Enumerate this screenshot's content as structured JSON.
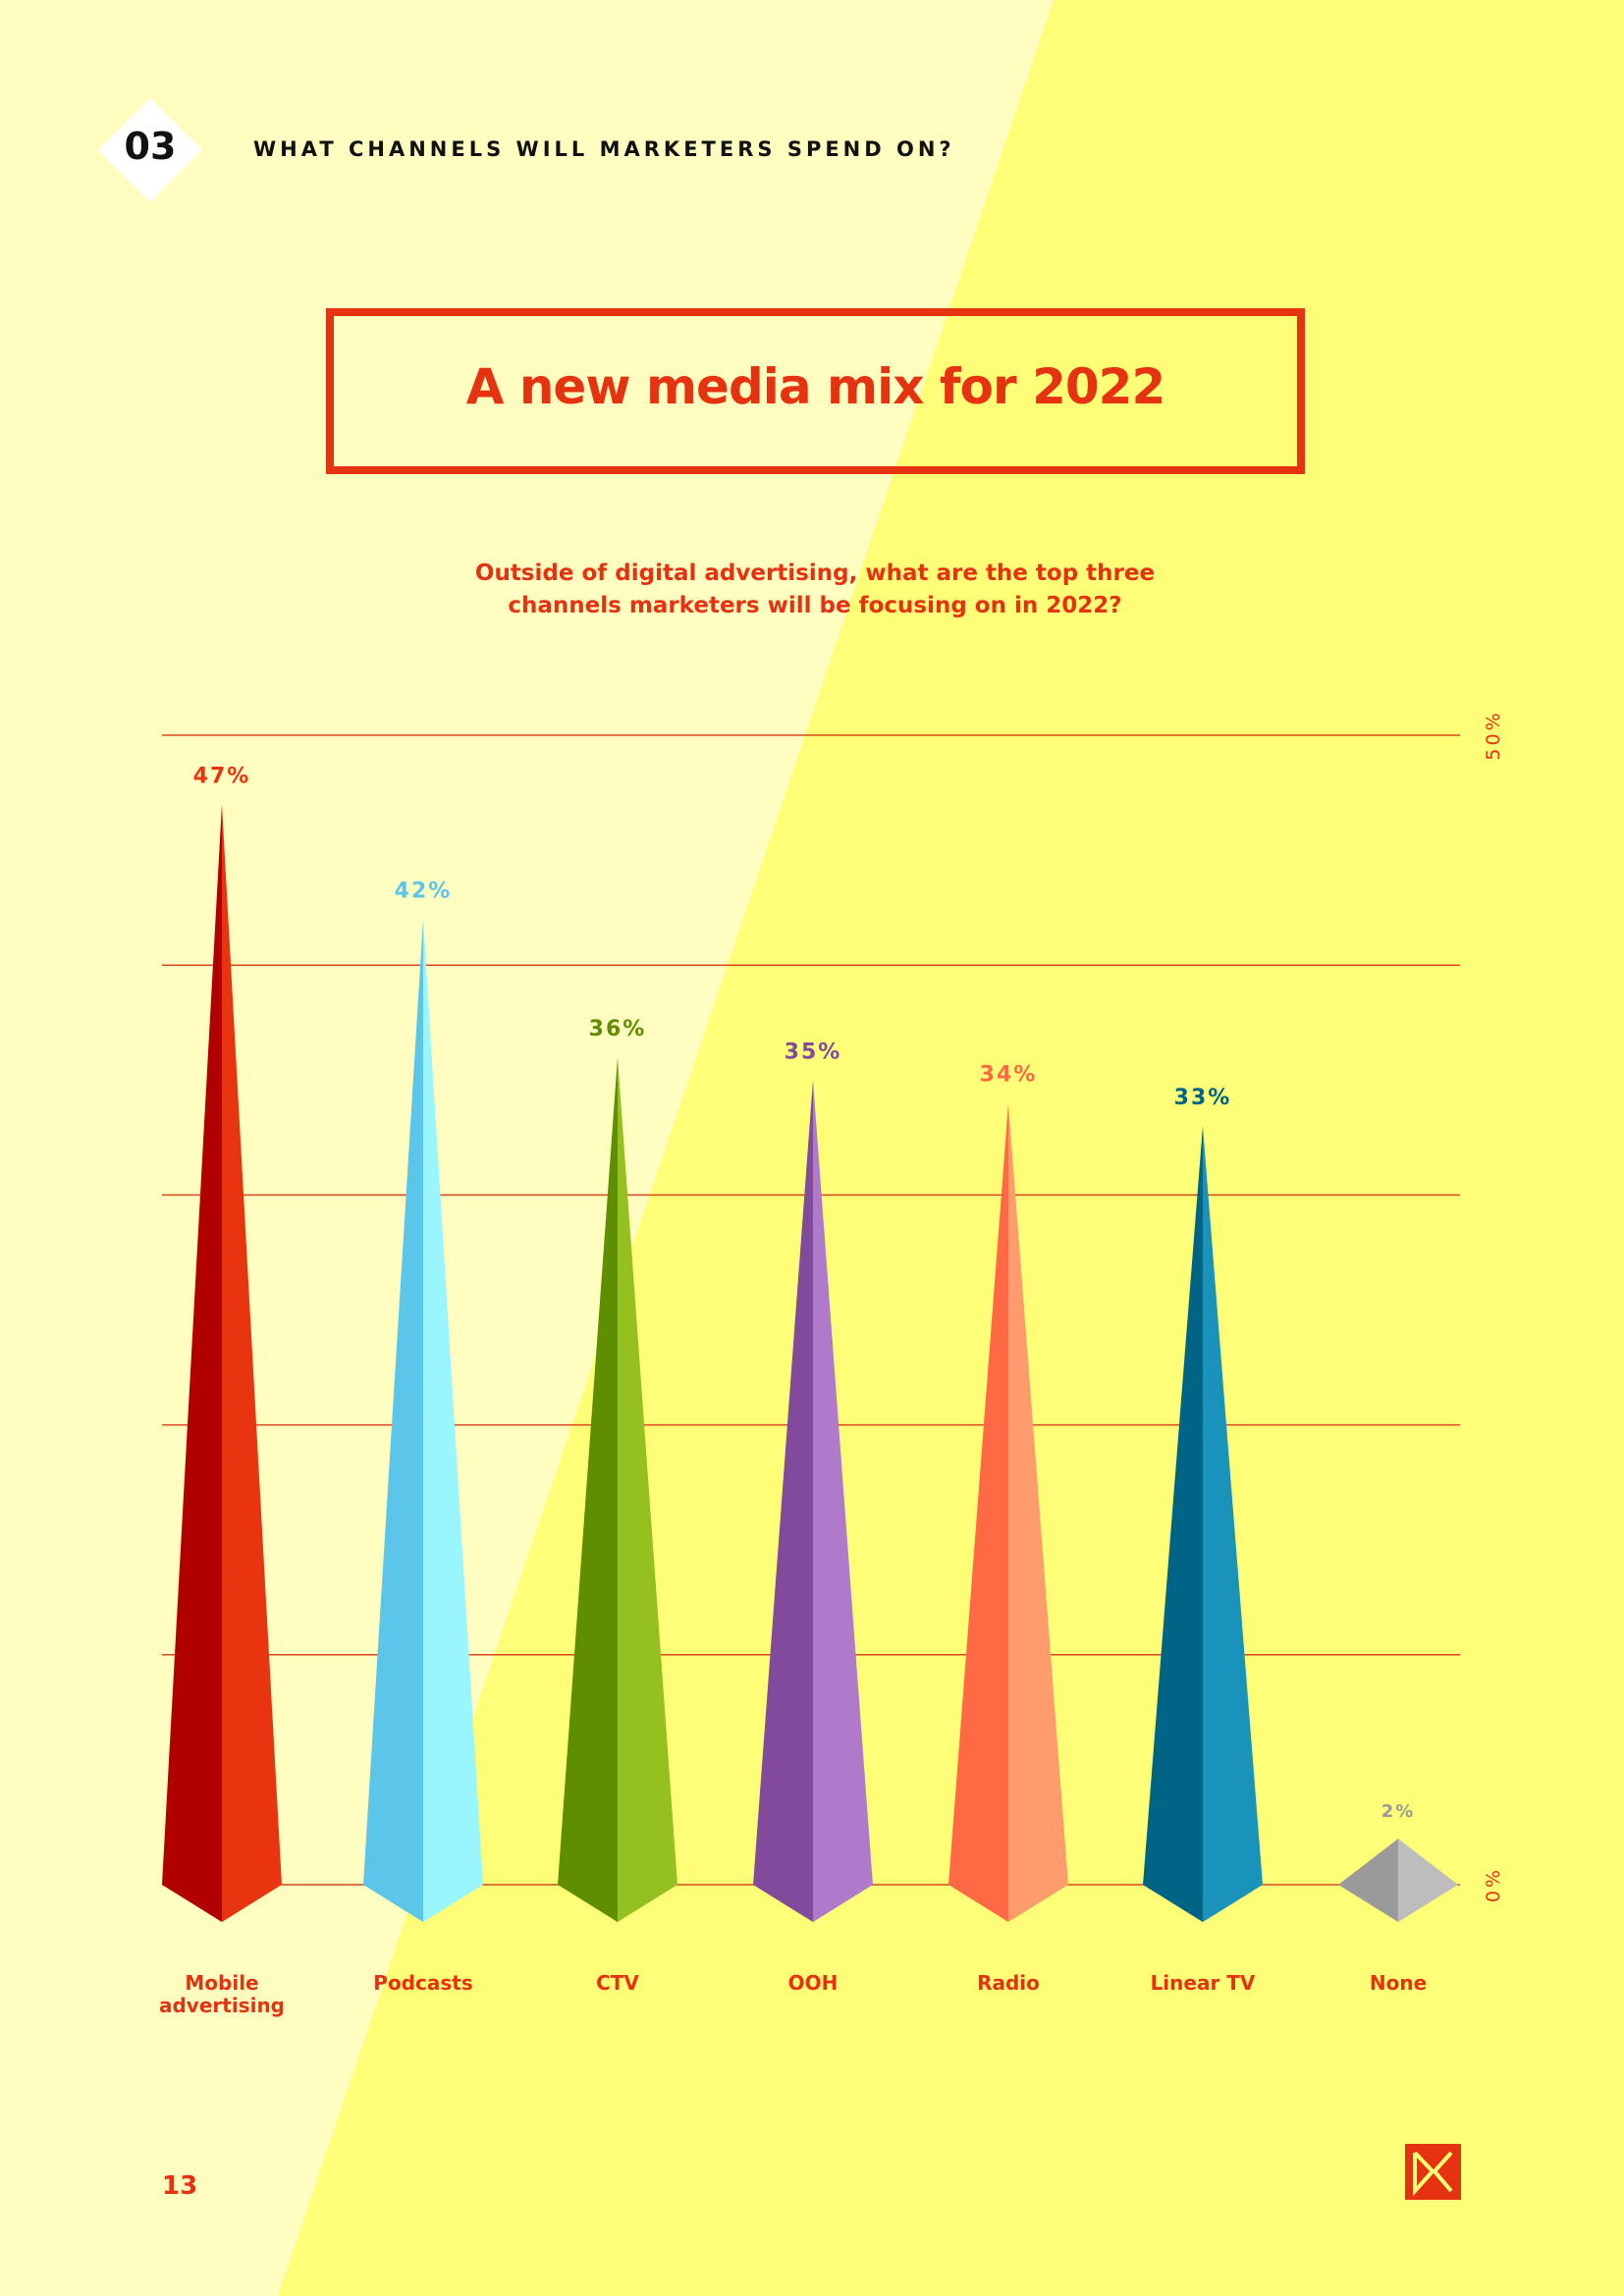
{
  "header": {
    "section_number": "03",
    "section_title": "WHAT CHANNELS WILL MARKETERS SPEND ON?"
  },
  "title": "A new media mix for 2022",
  "subtitle_lines": [
    "Outside of digital advertising, what are the top three",
    "channels marketers will be focusing on in 2022?"
  ],
  "footer": {
    "page_number": "13",
    "logo_text": "DK"
  },
  "colors": {
    "accent": "#E53312",
    "bg_light": "#FFFDC0",
    "bg_yellow": "#FFFF77"
  },
  "chart_data": {
    "type": "bar",
    "style": "pyramid spikes",
    "categories": [
      "Mobile advertising",
      "Podcasts",
      "CTV",
      "OOH",
      "Radio",
      "Linear TV",
      "None"
    ],
    "category_lines": [
      [
        "Mobile",
        "advertising"
      ],
      [
        "Podcasts"
      ],
      [
        "CTV"
      ],
      [
        "OOH"
      ],
      [
        "Radio"
      ],
      [
        "Linear TV"
      ],
      [
        "None"
      ]
    ],
    "values": [
      47,
      42,
      36,
      35,
      34,
      33,
      2
    ],
    "data_labels": [
      "47%",
      "42%",
      "36%",
      "35%",
      "34%",
      "33%",
      "2%"
    ],
    "colors": [
      {
        "dark": "#B00000",
        "light": "#E8340F",
        "label": "#E8340F"
      },
      {
        "dark": "#5BC5EA",
        "light": "#99F6FF",
        "label": "#5BC5EA"
      },
      {
        "dark": "#5F8E00",
        "light": "#94C11F",
        "label": "#5F8E00"
      },
      {
        "dark": "#814A9A",
        "light": "#B07ACB",
        "label": "#814A9A"
      },
      {
        "dark": "#FF6A45",
        "light": "#FF9C6E",
        "label": "#FF6A45"
      },
      {
        "dark": "#006487",
        "light": "#1A93BA",
        "label": "#006487"
      },
      {
        "dark": "#9A9A9A",
        "light": "#BDBDBD",
        "label": "#9A9A9A"
      }
    ],
    "ylim": [
      0,
      50
    ],
    "y_gridlines": [
      0,
      10,
      20,
      30,
      40,
      50
    ],
    "y_tick_labels": [
      "0%",
      "50%"
    ],
    "grid": true,
    "xlabel": "",
    "ylabel": ""
  }
}
